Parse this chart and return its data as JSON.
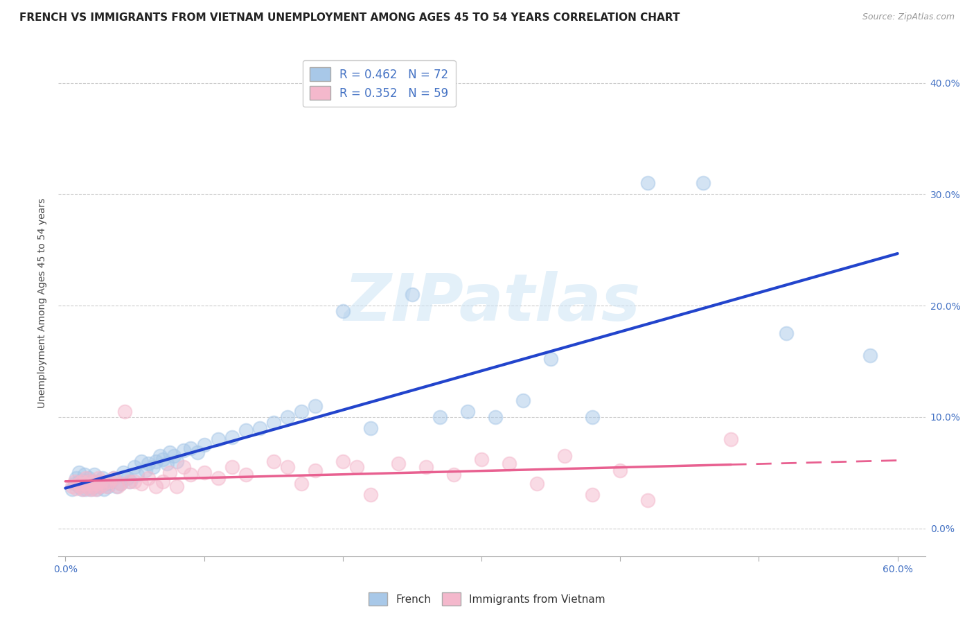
{
  "title": "FRENCH VS IMMIGRANTS FROM VIETNAM UNEMPLOYMENT AMONG AGES 45 TO 54 YEARS CORRELATION CHART",
  "source": "Source: ZipAtlas.com",
  "ylabel": "Unemployment Among Ages 45 to 54 years",
  "xlim": [
    -0.005,
    0.62
  ],
  "ylim": [
    -0.025,
    0.43
  ],
  "xticks": [
    0.0,
    0.1,
    0.2,
    0.3,
    0.4,
    0.5,
    0.6
  ],
  "xtick_labels": [
    "0.0%",
    "",
    "",
    "",
    "",
    "",
    "60.0%"
  ],
  "yticks": [
    0.0,
    0.1,
    0.2,
    0.3,
    0.4
  ],
  "ytick_labels": [
    "0.0%",
    "10.0%",
    "20.0%",
    "30.0%",
    "40.0%"
  ],
  "french_R": 0.462,
  "french_N": 72,
  "vietnam_R": 0.352,
  "vietnam_N": 59,
  "french_color": "#a8c8e8",
  "vietnam_color": "#f4b8cc",
  "french_line_color": "#2244cc",
  "vietnam_line_color": "#e86090",
  "watermark_color": "#ddeeff",
  "legend_label_french": "French",
  "legend_label_vietnam": "Immigrants from Vietnam",
  "french_x": [
    0.005,
    0.007,
    0.008,
    0.01,
    0.01,
    0.01,
    0.012,
    0.013,
    0.014,
    0.015,
    0.015,
    0.016,
    0.017,
    0.018,
    0.019,
    0.02,
    0.02,
    0.021,
    0.022,
    0.023,
    0.024,
    0.025,
    0.026,
    0.027,
    0.028,
    0.03,
    0.031,
    0.033,
    0.035,
    0.037,
    0.04,
    0.042,
    0.045,
    0.047,
    0.05,
    0.052,
    0.055,
    0.058,
    0.06,
    0.063,
    0.065,
    0.068,
    0.07,
    0.073,
    0.075,
    0.078,
    0.08,
    0.085,
    0.09,
    0.095,
    0.1,
    0.11,
    0.12,
    0.13,
    0.14,
    0.15,
    0.16,
    0.17,
    0.18,
    0.2,
    0.22,
    0.25,
    0.27,
    0.29,
    0.31,
    0.33,
    0.35,
    0.38,
    0.42,
    0.46,
    0.52,
    0.58
  ],
  "french_y": [
    0.035,
    0.04,
    0.045,
    0.038,
    0.042,
    0.05,
    0.035,
    0.04,
    0.048,
    0.035,
    0.042,
    0.038,
    0.045,
    0.04,
    0.035,
    0.038,
    0.042,
    0.048,
    0.04,
    0.035,
    0.042,
    0.038,
    0.04,
    0.045,
    0.035,
    0.04,
    0.038,
    0.042,
    0.045,
    0.038,
    0.04,
    0.05,
    0.045,
    0.042,
    0.055,
    0.048,
    0.06,
    0.052,
    0.058,
    0.055,
    0.06,
    0.065,
    0.062,
    0.058,
    0.068,
    0.065,
    0.06,
    0.07,
    0.072,
    0.068,
    0.075,
    0.08,
    0.082,
    0.088,
    0.09,
    0.095,
    0.1,
    0.105,
    0.11,
    0.195,
    0.09,
    0.21,
    0.1,
    0.105,
    0.1,
    0.115,
    0.152,
    0.1,
    0.31,
    0.31,
    0.175,
    0.155
  ],
  "vietnam_x": [
    0.005,
    0.007,
    0.008,
    0.01,
    0.011,
    0.012,
    0.013,
    0.014,
    0.015,
    0.016,
    0.017,
    0.018,
    0.019,
    0.02,
    0.021,
    0.022,
    0.023,
    0.024,
    0.025,
    0.026,
    0.028,
    0.03,
    0.032,
    0.035,
    0.038,
    0.04,
    0.043,
    0.046,
    0.05,
    0.055,
    0.06,
    0.065,
    0.07,
    0.075,
    0.08,
    0.085,
    0.09,
    0.1,
    0.11,
    0.12,
    0.13,
    0.15,
    0.16,
    0.17,
    0.18,
    0.2,
    0.21,
    0.22,
    0.24,
    0.26,
    0.28,
    0.3,
    0.32,
    0.34,
    0.36,
    0.38,
    0.4,
    0.42,
    0.48
  ],
  "vietnam_y": [
    0.038,
    0.042,
    0.036,
    0.04,
    0.038,
    0.042,
    0.035,
    0.04,
    0.045,
    0.038,
    0.042,
    0.035,
    0.04,
    0.038,
    0.042,
    0.035,
    0.04,
    0.045,
    0.038,
    0.042,
    0.04,
    0.038,
    0.042,
    0.045,
    0.038,
    0.04,
    0.105,
    0.042,
    0.042,
    0.04,
    0.045,
    0.038,
    0.042,
    0.05,
    0.038,
    0.055,
    0.048,
    0.05,
    0.045,
    0.055,
    0.048,
    0.06,
    0.055,
    0.04,
    0.052,
    0.06,
    0.055,
    0.03,
    0.058,
    0.055,
    0.048,
    0.062,
    0.058,
    0.04,
    0.065,
    0.03,
    0.052,
    0.025,
    0.08
  ],
  "background_color": "#ffffff",
  "grid_color": "#cccccc",
  "title_fontsize": 11,
  "axis_fontsize": 10,
  "tick_fontsize": 10
}
